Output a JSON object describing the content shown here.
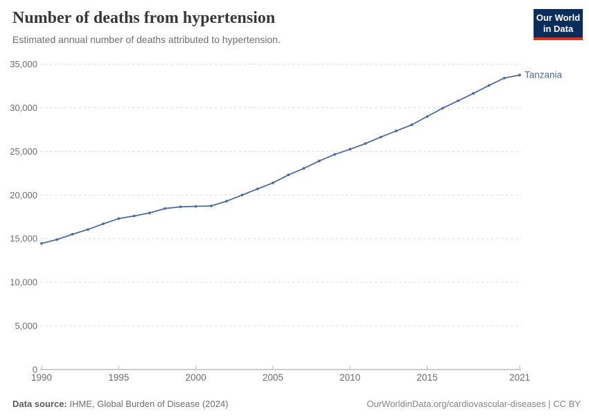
{
  "header": {
    "title": "Number of deaths from hypertension",
    "subtitle": "Estimated annual number of deaths attributed to hypertension.",
    "logo": {
      "line1": "Our World",
      "line2": "in Data",
      "bg_color": "#0b2d5b",
      "accent_color": "#d2352a"
    }
  },
  "chart_data": {
    "type": "line",
    "title": "Number of deaths from hypertension",
    "subtitle": "Estimated annual number of deaths attributed to hypertension.",
    "xlabel": "",
    "ylabel": "",
    "xlim": [
      1990,
      2021
    ],
    "ylim": [
      0,
      35000
    ],
    "grid": "horizontal-dashed",
    "legend_position": "end-of-line-label",
    "x_ticks": [
      1990,
      1995,
      2000,
      2005,
      2010,
      2015,
      2021
    ],
    "y_ticks": [
      0,
      5000,
      10000,
      15000,
      20000,
      25000,
      30000,
      35000
    ],
    "series": [
      {
        "name": "Tanzania",
        "color": "#4c6a9c",
        "x": [
          1990,
          1991,
          1992,
          1993,
          1994,
          1995,
          1996,
          1997,
          1998,
          1999,
          2000,
          2001,
          2002,
          2003,
          2004,
          2005,
          2006,
          2007,
          2008,
          2009,
          2010,
          2011,
          2012,
          2013,
          2014,
          2015,
          2016,
          2017,
          2018,
          2019,
          2020,
          2021
        ],
        "values": [
          14450,
          14900,
          15500,
          16050,
          16700,
          17300,
          17600,
          17950,
          18450,
          18650,
          18700,
          18750,
          19300,
          20000,
          20700,
          21400,
          22300,
          23050,
          23900,
          24650,
          25250,
          25900,
          26650,
          27350,
          28050,
          29000,
          29950,
          30800,
          31650,
          32550,
          33400,
          33750
        ]
      }
    ],
    "entity_label": "Tanzania",
    "colors": {
      "line": "#4c6a9c",
      "gridline": "#dadada",
      "axis_line": "#9a9a9a",
      "tick_mark": "#b3b3b3",
      "tick_label": "#6b6b6b"
    }
  },
  "footer": {
    "source_label": "Data source:",
    "source_value": " IHME, Global Burden of Disease (2024)",
    "credit": "OurWorldinData.org/cardiovascular-diseases | CC BY"
  }
}
